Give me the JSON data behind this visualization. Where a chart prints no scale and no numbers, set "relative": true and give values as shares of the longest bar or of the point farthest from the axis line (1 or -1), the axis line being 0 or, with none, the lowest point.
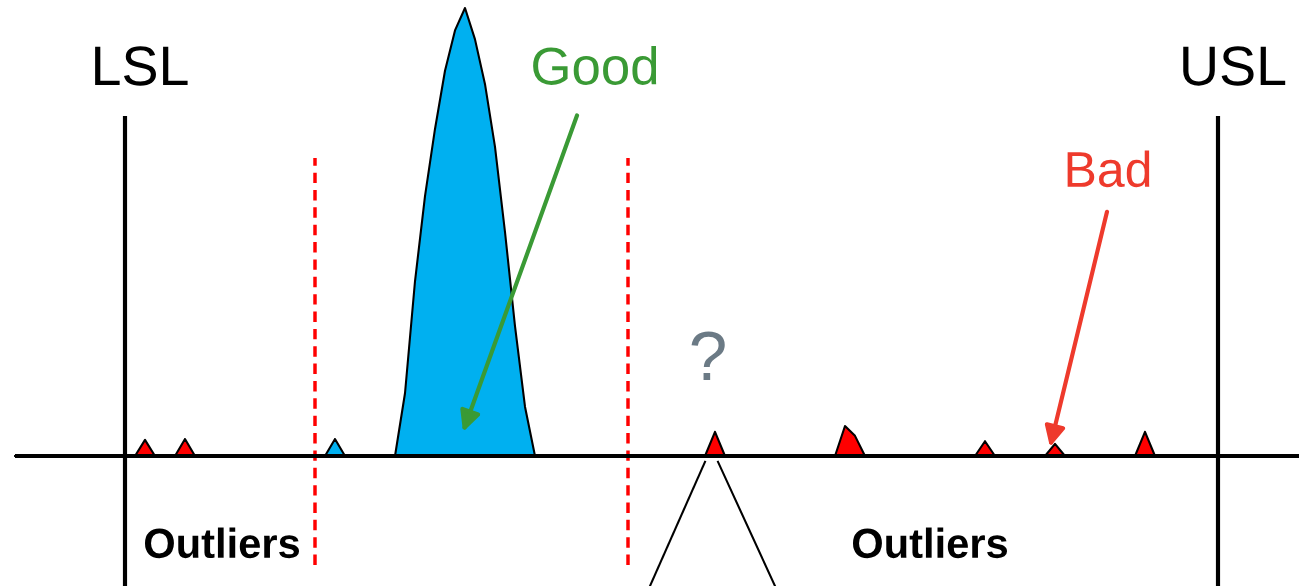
{
  "chart_data": {
    "type": "area",
    "relative": true,
    "categories": [
      null,
      null,
      null,
      null,
      null,
      null,
      null,
      null,
      null,
      null,
      null,
      null,
      null,
      null,
      null,
      null,
      null,
      null,
      null,
      null,
      null,
      null,
      null,
      null,
      null,
      null,
      null,
      null,
      null,
      null,
      null,
      null,
      null,
      null,
      null,
      null,
      null,
      null,
      null,
      null,
      null,
      null,
      null,
      null,
      null,
      null,
      null,
      null,
      null,
      null,
      null,
      null,
      null,
      null,
      null,
      null,
      null,
      null,
      null,
      null,
      null,
      null,
      null,
      null,
      null,
      null,
      null,
      null,
      null,
      null,
      null,
      null,
      null,
      null,
      null,
      null,
      null,
      null,
      null,
      null,
      null,
      null,
      null,
      null,
      null,
      null,
      null,
      null,
      null,
      null,
      null,
      null,
      null,
      null,
      null,
      null,
      null,
      null,
      null,
      null,
      null,
      null,
      null,
      null,
      null,
      null,
      null,
      null,
      null,
      null,
      null,
      null,
      null,
      null,
      null,
      null,
      null,
      null,
      null,
      null,
      null,
      null,
      null,
      null,
      null,
      null,
      null,
      null,
      null
    ],
    "series": [
      {
        "color": "#00b0f0",
        "values": [
          0,
          0,
          0,
          0,
          0,
          0,
          0,
          0,
          0,
          0,
          0,
          0,
          0,
          0,
          0,
          0,
          0,
          0,
          0,
          0,
          0,
          0,
          0,
          0,
          0,
          0,
          0,
          0,
          0,
          0,
          0,
          0,
          0.038,
          0,
          0,
          0,
          0,
          0,
          0,
          0.14,
          0.39,
          0.58,
          0.73,
          0.86,
          0.95,
          1.0,
          0.93,
          0.83,
          0.69,
          0.5,
          0.29,
          0.11,
          0,
          0,
          0,
          0,
          0,
          0,
          0,
          0,
          0,
          0,
          0,
          0,
          0,
          0,
          0,
          0,
          0,
          0,
          0,
          0,
          0,
          0,
          0,
          0,
          0,
          0,
          0,
          0,
          0,
          0,
          0,
          0,
          0,
          0,
          0,
          0,
          0,
          0,
          0,
          0,
          0,
          0,
          0,
          0,
          0,
          0,
          0,
          0,
          0,
          0,
          0,
          0,
          0,
          0,
          0,
          0,
          0,
          0,
          0,
          0,
          0,
          0,
          0,
          0,
          0,
          0,
          0,
          0,
          0,
          0,
          0,
          0,
          0,
          0,
          0,
          0,
          0
        ]
      },
      {
        "color": "#ff0000",
        "values": [
          0,
          0,
          0,
          0,
          0,
          0,
          0,
          0,
          0,
          0,
          0,
          0,
          0,
          0.036,
          0,
          0,
          0,
          0.038,
          0,
          0,
          0,
          0,
          0,
          0,
          0,
          0,
          0,
          0,
          0,
          0,
          0,
          0,
          0,
          0,
          0,
          0,
          0,
          0,
          0,
          0,
          0,
          0,
          0,
          0,
          0,
          0,
          0,
          0,
          0,
          0,
          0,
          0,
          0,
          0,
          0,
          0,
          0,
          0,
          0,
          0,
          0,
          0,
          0,
          0,
          0,
          0,
          0,
          0,
          0,
          0,
          0.054,
          0,
          0,
          0,
          0,
          0,
          0,
          0,
          0,
          0,
          0,
          0,
          0,
          0.067,
          0.045,
          0,
          0,
          0,
          0,
          0,
          0,
          0,
          0,
          0,
          0,
          0,
          0,
          0.033,
          0,
          0,
          0,
          0,
          0,
          0,
          0.027,
          0,
          0,
          0,
          0,
          0,
          0,
          0,
          0,
          0.054,
          0,
          0,
          0,
          0,
          0,
          0,
          0,
          0,
          0,
          0,
          0,
          0,
          0,
          0,
          0
        ]
      }
    ],
    "annotations": [
      "LSL",
      "USL",
      "Good",
      "Bad",
      "?",
      "Outliers",
      "Outliers"
    ]
  }
}
